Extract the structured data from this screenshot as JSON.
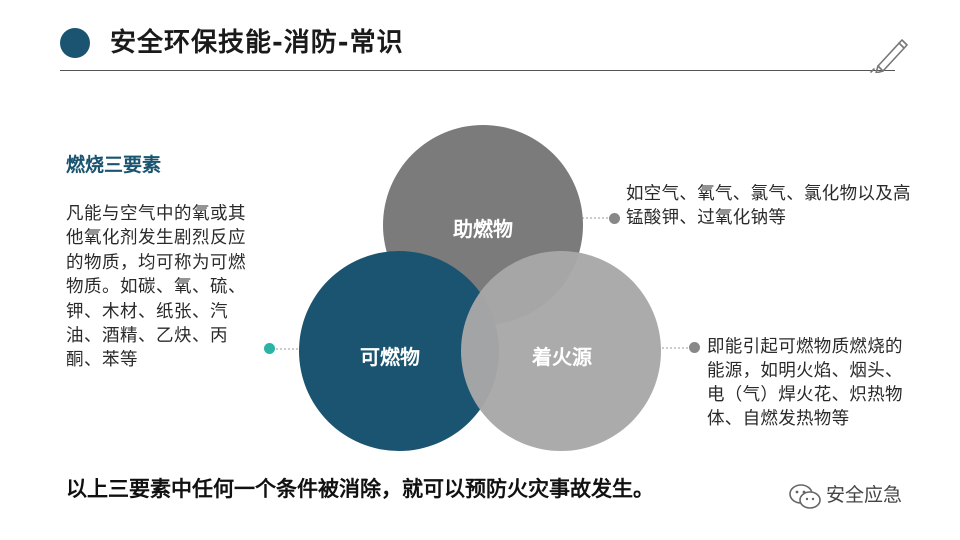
{
  "header": {
    "title": "安全环保技能-消防-常识",
    "dot_color": "#1a5470",
    "decor_icon": "pen-icon"
  },
  "left": {
    "heading": "燃烧三要素",
    "description": "凡能与空气中的氧或其他氧化剂发生剧烈反应的物质，均可称为可燃物质。如碳、氧、硫、钾、木材、纸张、汽油、酒精、乙炔、丙酮、苯等"
  },
  "venn": {
    "top_label": "助燃物",
    "left_label": "可燃物",
    "right_label": "着火源",
    "colors": {
      "top": "#7b7b7b",
      "left": "#1a5470",
      "right": "#a8a8a8"
    }
  },
  "right": {
    "oxidizer_desc": "如空气、氧气、氯气、氯化物以及高锰酸钾、过氧化钠等",
    "ignition_desc": "即能引起可燃物质燃烧的能源，如明火焰、烟头、电（气）焊火花、炽热物体、自燃发热物等"
  },
  "footer": {
    "conclusion": "以上三要素中任何一个条件被消除，就可以预防火灾事故发生。",
    "watermark": "安全应急",
    "watermark_icon": "wechat-icon"
  },
  "accent_teal": "#2bb3a6"
}
